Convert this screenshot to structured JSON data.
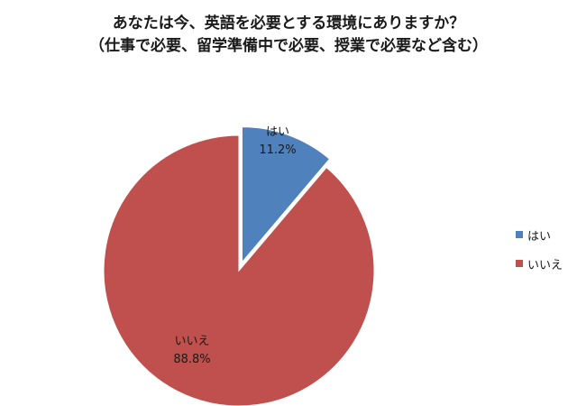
{
  "chart_data": {
    "type": "pie",
    "title_lines": [
      "あなたは今、英語を必要とする環境にありますか？",
      "（仕事で必要、留学準備中で必要、授業で必要など含む）"
    ],
    "slices": [
      {
        "label": "はい",
        "value": 11.2,
        "value_label": "11.2%",
        "color": "#4f81bd",
        "exploded": true
      },
      {
        "label": "いいえ",
        "value": 88.8,
        "value_label": "88.8%",
        "color": "#c0504d",
        "exploded": false
      }
    ],
    "legend": [
      "はい",
      "いいえ"
    ],
    "legend_position": "right",
    "start": "12 o'clock",
    "direction": "clockwise"
  }
}
